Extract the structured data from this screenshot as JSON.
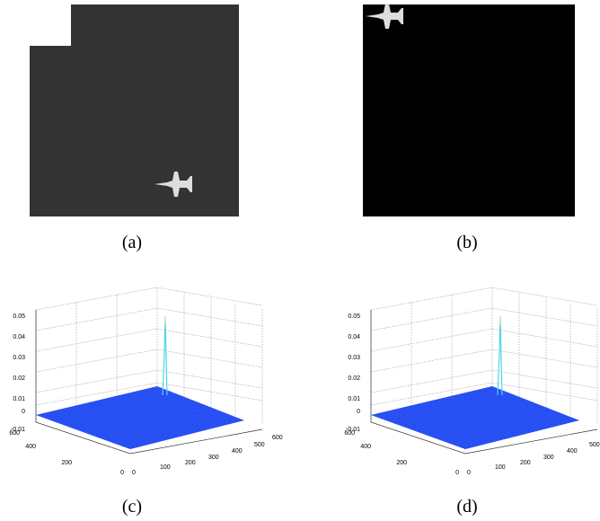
{
  "panels": [
    {
      "caption": "(a)"
    },
    {
      "caption": "(b)"
    },
    {
      "caption": "(c)",
      "z_ticks": [
        "0.05",
        "0.04",
        "0.03",
        "0.02",
        "0.01",
        "0",
        "-0.01"
      ],
      "y_ticks": [
        "600",
        "400",
        "200",
        "0"
      ],
      "x_ticks": [
        "0",
        "100",
        "200",
        "300",
        "400",
        "500",
        "600"
      ]
    },
    {
      "caption": "(d)",
      "z_ticks": [
        "0.05",
        "0.04",
        "0.03",
        "0.02",
        "0.01",
        "0",
        "-0.01"
      ],
      "y_ticks": [
        "600",
        "400",
        "200",
        "0"
      ],
      "x_ticks": [
        "0",
        "100",
        "200",
        "300",
        "400",
        "500",
        "600"
      ]
    }
  ]
}
